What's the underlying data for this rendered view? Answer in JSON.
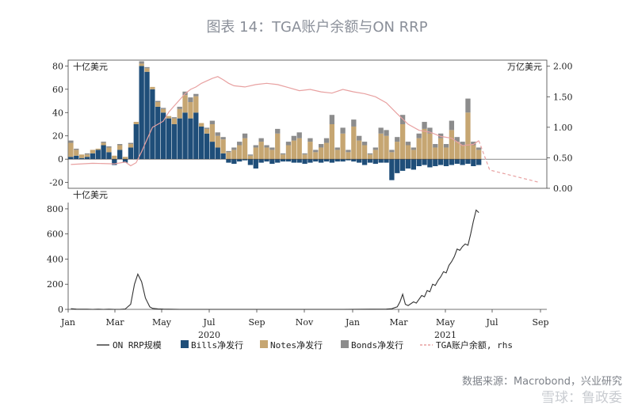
{
  "title": "图表 14：TGA账户余额与ON RRP",
  "source": "数据来源：Macrobond，兴业研究",
  "watermark": "雪球：鲁政委",
  "colors": {
    "bills": "#1f4e79",
    "notes": "#c6a672",
    "bonds": "#8c8c8c",
    "tga": "#e8a1a1",
    "onrrp": "#333333"
  },
  "chart_data": [
    {
      "type": "bar",
      "panel": "top",
      "ylabel": "十亿美元",
      "ylabel_right": "万亿美元",
      "ylim": [
        -25,
        85
      ],
      "yticks": [
        -20,
        0,
        20,
        40,
        60,
        80
      ],
      "ylim_right": [
        0.0,
        2.1
      ],
      "yticks_right": [
        "0.00",
        "0.50",
        "1.00",
        "1.50",
        "2.00"
      ],
      "x_unit": "weeks since 2020-01-03",
      "bills": [
        2,
        3,
        1,
        2,
        5,
        8,
        12,
        6,
        -5,
        8,
        -3,
        10,
        30,
        80,
        75,
        60,
        45,
        40,
        35,
        30,
        35,
        40,
        35,
        40,
        28,
        22,
        15,
        10,
        5,
        -3,
        -4,
        -2,
        -1,
        -5,
        -8,
        -3,
        -2,
        -4,
        -3,
        -2,
        -2,
        -3,
        -3,
        -4,
        -3,
        -2,
        -3,
        -2,
        -3,
        -2,
        -2,
        -1,
        -2,
        -3,
        -5,
        -3,
        -4,
        -3,
        -3,
        -18,
        -12,
        -10,
        -8,
        -9,
        -6,
        -5,
        -7,
        -6,
        -5,
        -6,
        -5,
        -4,
        -5,
        -4,
        -6,
        -5
      ],
      "notes": [
        12,
        5,
        3,
        2,
        3,
        1,
        2,
        4,
        3,
        4,
        2,
        3,
        2,
        2,
        3,
        2,
        4,
        3,
        2,
        5,
        8,
        15,
        14,
        14,
        3,
        4,
        15,
        10,
        12,
        6,
        8,
        12,
        18,
        3,
        10,
        15,
        10,
        8,
        22,
        4,
        12,
        16,
        18,
        4,
        15,
        6,
        10,
        14,
        30,
        8,
        22,
        6,
        28,
        16,
        12,
        4,
        8,
        22,
        20,
        6,
        15,
        30,
        12,
        8,
        18,
        26,
        22,
        10,
        18,
        10,
        25,
        15,
        12,
        40,
        12,
        8
      ],
      "bonds": [
        2,
        1,
        0,
        1,
        0,
        0,
        1,
        1,
        0,
        1,
        0,
        1,
        0,
        2,
        1,
        0,
        1,
        1,
        0,
        1,
        2,
        3,
        4,
        2,
        0,
        1,
        3,
        3,
        2,
        1,
        2,
        3,
        4,
        1,
        2,
        3,
        2,
        2,
        4,
        1,
        3,
        4,
        5,
        1,
        3,
        2,
        3,
        4,
        8,
        2,
        5,
        2,
        6,
        4,
        3,
        1,
        2,
        5,
        5,
        2,
        4,
        8,
        3,
        2,
        4,
        6,
        5,
        3,
        4,
        3,
        8,
        4,
        3,
        12,
        3,
        2
      ],
      "tga": [
        [
          0,
          0.39
        ],
        [
          4,
          0.41
        ],
        [
          8,
          0.4
        ],
        [
          10,
          0.43
        ],
        [
          11,
          0.37
        ],
        [
          12,
          0.42
        ],
        [
          13,
          0.6
        ],
        [
          14,
          0.8
        ],
        [
          15,
          1.0
        ],
        [
          16,
          1.05
        ],
        [
          17,
          1.1
        ],
        [
          18,
          1.25
        ],
        [
          19,
          1.35
        ],
        [
          20,
          1.45
        ],
        [
          21,
          1.55
        ],
        [
          22,
          1.62
        ],
        [
          23,
          1.66
        ],
        [
          24,
          1.72
        ],
        [
          25,
          1.76
        ],
        [
          26,
          1.8
        ],
        [
          27,
          1.83
        ],
        [
          28,
          1.78
        ],
        [
          29,
          1.72
        ],
        [
          30,
          1.68
        ],
        [
          32,
          1.66
        ],
        [
          34,
          1.7
        ],
        [
          36,
          1.72
        ],
        [
          38,
          1.7
        ],
        [
          40,
          1.65
        ],
        [
          42,
          1.6
        ],
        [
          44,
          1.62
        ],
        [
          46,
          1.58
        ],
        [
          48,
          1.56
        ],
        [
          50,
          1.62
        ],
        [
          52,
          1.58
        ],
        [
          54,
          1.55
        ],
        [
          56,
          1.5
        ],
        [
          58,
          1.4
        ],
        [
          60,
          1.22
        ],
        [
          62,
          1.05
        ],
        [
          64,
          0.95
        ],
        [
          66,
          0.92
        ],
        [
          68,
          0.85
        ],
        [
          70,
          0.82
        ],
        [
          72,
          0.7
        ],
        [
          74,
          0.72
        ],
        [
          75,
          0.78
        ]
      ],
      "tga_projection": [
        [
          75,
          0.78
        ],
        [
          77,
          0.3
        ],
        [
          86,
          0.1
        ]
      ]
    },
    {
      "type": "line",
      "panel": "bottom",
      "ylabel": "十亿美元",
      "ylim": [
        0,
        850
      ],
      "yticks": [
        0,
        200,
        400,
        600,
        800
      ],
      "xticks": [
        "Jan",
        "Mar",
        "May",
        "Jul",
        "Sep",
        "Nov",
        "Jan",
        "Mar",
        "May",
        "Jul",
        "Sep"
      ],
      "year_labels": [
        "2020",
        "2021"
      ],
      "x_unit": "weeks since 2020-01-03",
      "onrrp": [
        [
          0,
          5
        ],
        [
          1,
          2
        ],
        [
          2,
          1
        ],
        [
          3,
          1
        ],
        [
          4,
          0
        ],
        [
          5,
          1
        ],
        [
          6,
          0
        ],
        [
          7,
          1
        ],
        [
          8,
          0
        ],
        [
          9,
          0
        ],
        [
          10,
          3
        ],
        [
          11,
          40
        ],
        [
          11.7,
          200
        ],
        [
          12.3,
          280
        ],
        [
          13,
          220
        ],
        [
          13.7,
          90
        ],
        [
          14.5,
          20
        ],
        [
          15,
          8
        ],
        [
          16,
          4
        ],
        [
          17,
          2
        ],
        [
          18,
          1
        ],
        [
          20,
          0
        ],
        [
          24,
          0
        ],
        [
          30,
          0
        ],
        [
          40,
          0
        ],
        [
          50,
          0
        ],
        [
          55,
          1
        ],
        [
          58,
          2
        ],
        [
          59,
          5
        ],
        [
          60,
          20
        ],
        [
          60.5,
          60
        ],
        [
          61,
          120
        ],
        [
          61.5,
          40
        ],
        [
          62,
          30
        ],
        [
          63,
          60
        ],
        [
          63.5,
          50
        ],
        [
          64,
          80
        ],
        [
          64.5,
          110
        ],
        [
          65,
          100
        ],
        [
          65.5,
          150
        ],
        [
          66,
          140
        ],
        [
          66.5,
          200
        ],
        [
          67,
          190
        ],
        [
          67.5,
          230
        ],
        [
          68,
          260
        ],
        [
          68.5,
          300
        ],
        [
          69,
          290
        ],
        [
          69.5,
          350
        ],
        [
          70,
          380
        ],
        [
          70.5,
          420
        ],
        [
          71,
          480
        ],
        [
          71.5,
          470
        ],
        [
          72,
          500
        ],
        [
          72.5,
          520
        ],
        [
          73,
          510
        ],
        [
          73.5,
          600
        ],
        [
          74,
          700
        ],
        [
          74.5,
          790
        ],
        [
          75,
          770
        ]
      ]
    }
  ],
  "legend": [
    {
      "key": "onrrp",
      "label": "ON RRP规模"
    },
    {
      "key": "bills",
      "label": "Bills净发行"
    },
    {
      "key": "notes",
      "label": "Notes净发行"
    },
    {
      "key": "bonds",
      "label": "Bonds净发行"
    },
    {
      "key": "tga",
      "label": "TGA账户余额, rhs"
    }
  ]
}
